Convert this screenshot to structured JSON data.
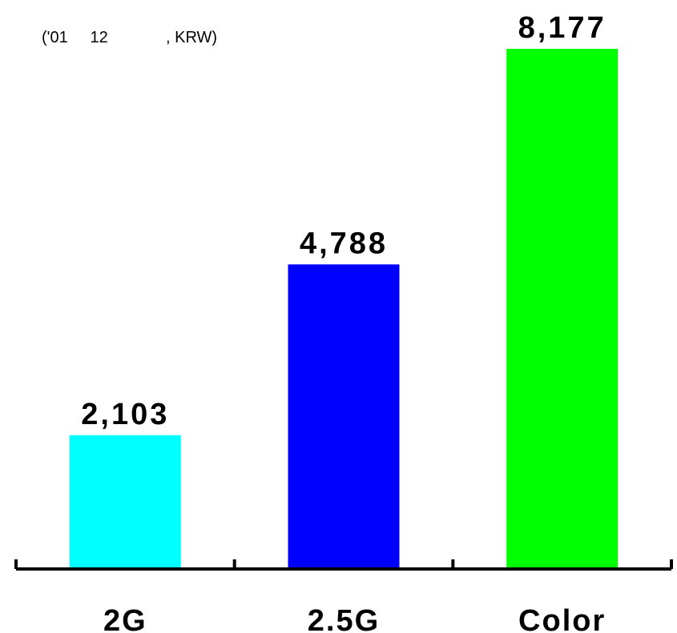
{
  "chart_data": {
    "type": "bar",
    "note": "('01     12             , KRW)",
    "categories": [
      "2G",
      "2.5G",
      "Color"
    ],
    "values": [
      2103,
      4788,
      8177
    ],
    "value_labels": [
      "2,103",
      "4,788",
      "8,177"
    ],
    "colors": [
      "#00FFFF",
      "#0000FF",
      "#00FF00"
    ],
    "ylim": [
      0,
      8177
    ],
    "grid": false,
    "legend": "none"
  }
}
